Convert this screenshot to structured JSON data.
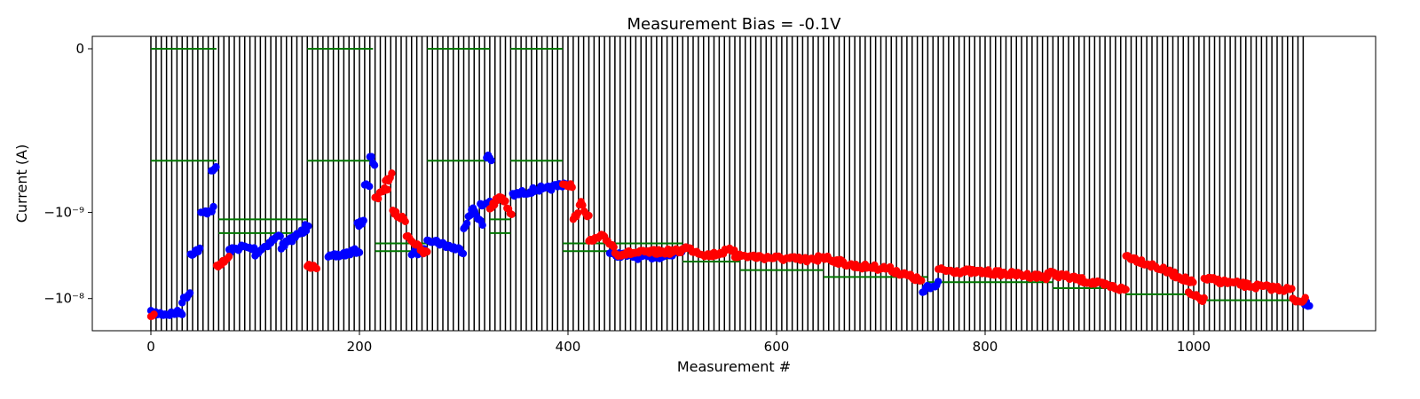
{
  "chart_data": {
    "type": "scatter",
    "title": "Measurement Bias = -0.1V",
    "xlabel": "Measurement #",
    "ylabel": "Current (A)",
    "xlim": [
      -55,
      1160
    ],
    "ylim_log_magnitude": [
      -7.75,
      -10.9
    ],
    "x_ticks": [
      0,
      200,
      400,
      600,
      800,
      1000
    ],
    "x_tick_labels": [
      "0",
      "200",
      "400",
      "600",
      "800",
      "1000"
    ],
    "y_ticks_log_magnitude": [
      -11,
      -9,
      -8
    ],
    "y_tick_labels": [
      "0",
      "−10⁻⁹",
      "−10⁻⁸"
    ],
    "vertical_lines": {
      "start": 0,
      "end": 1108,
      "step": 5,
      "color": "#000000"
    },
    "reference_segments": {
      "color": "#007700",
      "items": [
        {
          "x": [
            0,
            63
          ],
          "log_magnitude": -10.9
        },
        {
          "x": [
            150,
            213
          ],
          "log_magnitude": -10.9
        },
        {
          "x": [
            265,
            325
          ],
          "log_magnitude": -10.9
        },
        {
          "x": [
            345,
            395
          ],
          "log_magnitude": -10.9
        },
        {
          "x": [
            0,
            63
          ],
          "log_magnitude": -9.6
        },
        {
          "x": [
            150,
            213
          ],
          "log_magnitude": -9.6
        },
        {
          "x": [
            265,
            325
          ],
          "log_magnitude": -9.6
        },
        {
          "x": [
            345,
            395
          ],
          "log_magnitude": -9.6
        },
        {
          "x": [
            65,
            150
          ],
          "log_magnitude": -8.92
        },
        {
          "x": [
            65,
            150
          ],
          "log_magnitude": -8.76
        },
        {
          "x": [
            325,
            345
          ],
          "log_magnitude": -8.92
        },
        {
          "x": [
            325,
            345
          ],
          "log_magnitude": -8.76
        },
        {
          "x": [
            215,
            265
          ],
          "log_magnitude": -8.64
        },
        {
          "x": [
            215,
            265
          ],
          "log_magnitude": -8.55
        },
        {
          "x": [
            395,
            510
          ],
          "log_magnitude": -8.64
        },
        {
          "x": [
            395,
            510
          ],
          "log_magnitude": -8.55
        },
        {
          "x": [
            510,
            565
          ],
          "log_magnitude": -8.43
        },
        {
          "x": [
            565,
            645
          ],
          "log_magnitude": -8.33
        },
        {
          "x": [
            645,
            745
          ],
          "log_magnitude": -8.25
        },
        {
          "x": [
            745,
            865
          ],
          "log_magnitude": -8.19
        },
        {
          "x": [
            865,
            935
          ],
          "log_magnitude": -8.12
        },
        {
          "x": [
            935,
            1005
          ],
          "log_magnitude": -8.05
        },
        {
          "x": [
            1005,
            1108
          ],
          "log_magnitude": -7.98
        }
      ]
    },
    "series": [
      {
        "color": "#0000ff",
        "segments": [
          {
            "x_start": 0,
            "x_end": 30,
            "log_magnitude": [
              -7.83,
              -7.82,
              -7.84
            ]
          },
          {
            "x_start": 30,
            "x_end": 38,
            "log_magnitude": [
              -7.97,
              -8.08
            ]
          },
          {
            "x_start": 38,
            "x_end": 48,
            "log_magnitude": [
              -8.52,
              -8.58
            ]
          },
          {
            "x_start": 48,
            "x_end": 60,
            "log_magnitude": [
              -8.98,
              -9.04
            ]
          },
          {
            "x_start": 58,
            "x_end": 63,
            "log_magnitude": [
              -9.47,
              -9.53
            ]
          },
          {
            "x_start": 75,
            "x_end": 100,
            "log_magnitude": [
              -8.55,
              -8.6,
              -8.57
            ]
          },
          {
            "x_start": 100,
            "x_end": 125,
            "log_magnitude": [
              -8.52,
              -8.75
            ]
          },
          {
            "x_start": 125,
            "x_end": 150,
            "log_magnitude": [
              -8.6,
              -8.82
            ]
          },
          {
            "x_start": 148,
            "x_end": 152,
            "log_magnitude": [
              -8.88,
              -8.85
            ]
          },
          {
            "x_start": 170,
            "x_end": 200,
            "log_magnitude": [
              -8.47,
              -8.56
            ]
          },
          {
            "x_start": 198,
            "x_end": 205,
            "log_magnitude": [
              -8.85,
              -8.92
            ]
          },
          {
            "x_start": 205,
            "x_end": 210,
            "log_magnitude": [
              -9.33,
              -9.28
            ]
          },
          {
            "x_start": 210,
            "x_end": 215,
            "log_magnitude": [
              -9.65,
              -9.55
            ]
          },
          {
            "x_start": 250,
            "x_end": 262,
            "log_magnitude": [
              -8.52,
              -8.55
            ]
          },
          {
            "x_start": 265,
            "x_end": 300,
            "log_magnitude": [
              -8.7,
              -8.62,
              -8.55
            ]
          },
          {
            "x_start": 300,
            "x_end": 318,
            "log_magnitude": [
              -8.82,
              -9.05,
              -8.85
            ]
          },
          {
            "x_start": 316,
            "x_end": 325,
            "log_magnitude": [
              -9.08,
              -9.12
            ]
          },
          {
            "x_start": 322,
            "x_end": 327,
            "log_magnitude": [
              -9.65,
              -9.6
            ]
          },
          {
            "x_start": 347,
            "x_end": 375,
            "log_magnitude": [
              -9.2,
              -9.28
            ]
          },
          {
            "x_start": 375,
            "x_end": 400,
            "log_magnitude": [
              -9.25,
              -9.35
            ]
          },
          {
            "x_start": 440,
            "x_end": 500,
            "log_magnitude": [
              -8.52,
              -8.48,
              -8.5
            ]
          },
          {
            "x_start": 500,
            "x_end": 512,
            "log_magnitude": [
              -8.53,
              -8.58
            ]
          },
          {
            "x_start": 740,
            "x_end": 755,
            "log_magnitude": [
              -8.1,
              -8.18
            ]
          },
          {
            "x_start": 1105,
            "x_end": 1112,
            "log_magnitude": [
              -7.95,
              -7.93
            ]
          }
        ]
      },
      {
        "color": "#ff0000",
        "segments": [
          {
            "x_start": 0,
            "x_end": 3,
            "log_magnitude": [
              -7.8,
              -7.82
            ]
          },
          {
            "x_start": 63,
            "x_end": 75,
            "log_magnitude": [
              -8.38,
              -8.47
            ]
          },
          {
            "x_start": 150,
            "x_end": 160,
            "log_magnitude": [
              -8.38,
              -8.37
            ]
          },
          {
            "x_start": 215,
            "x_end": 228,
            "log_magnitude": [
              -9.15,
              -9.3
            ]
          },
          {
            "x_start": 225,
            "x_end": 232,
            "log_magnitude": [
              -9.35,
              -9.45
            ]
          },
          {
            "x_start": 232,
            "x_end": 245,
            "log_magnitude": [
              -9.0,
              -8.9
            ]
          },
          {
            "x_start": 245,
            "x_end": 262,
            "log_magnitude": [
              -8.75,
              -8.52
            ]
          },
          {
            "x_start": 262,
            "x_end": 265,
            "log_magnitude": [
              -8.52,
              -8.55
            ]
          },
          {
            "x_start": 325,
            "x_end": 347,
            "log_magnitude": [
              -9.05,
              -9.2,
              -8.95
            ]
          },
          {
            "x_start": 395,
            "x_end": 405,
            "log_magnitude": [
              -9.35,
              -9.3
            ]
          },
          {
            "x_start": 405,
            "x_end": 420,
            "log_magnitude": [
              -8.9,
              -9.1,
              -8.95
            ]
          },
          {
            "x_start": 420,
            "x_end": 445,
            "log_magnitude": [
              -8.65,
              -8.72,
              -8.6
            ]
          },
          {
            "x_start": 445,
            "x_end": 510,
            "log_magnitude": [
              -8.52,
              -8.55
            ]
          },
          {
            "x_start": 510,
            "x_end": 560,
            "log_magnitude": [
              -8.6,
              -8.5,
              -8.57
            ]
          },
          {
            "x_start": 560,
            "x_end": 640,
            "log_magnitude": [
              -8.5,
              -8.44
            ]
          },
          {
            "x_start": 640,
            "x_end": 740,
            "log_magnitude": [
              -8.5,
              -8.38,
              -8.35,
              -8.2
            ]
          },
          {
            "x_start": 755,
            "x_end": 860,
            "log_magnitude": [
              -8.33,
              -8.3,
              -8.25
            ]
          },
          {
            "x_start": 860,
            "x_end": 935,
            "log_magnitude": [
              -8.3,
              -8.2,
              -8.1
            ]
          },
          {
            "x_start": 935,
            "x_end": 1000,
            "log_magnitude": [
              -8.5,
              -8.35,
              -8.18
            ]
          },
          {
            "x_start": 995,
            "x_end": 1010,
            "log_magnitude": [
              -8.05,
              -7.98
            ]
          },
          {
            "x_start": 1010,
            "x_end": 1095,
            "log_magnitude": [
              -8.23,
              -8.15,
              -8.1
            ]
          },
          {
            "x_start": 1095,
            "x_end": 1108,
            "log_magnitude": [
              -7.98,
              -7.98
            ]
          }
        ]
      }
    ]
  }
}
